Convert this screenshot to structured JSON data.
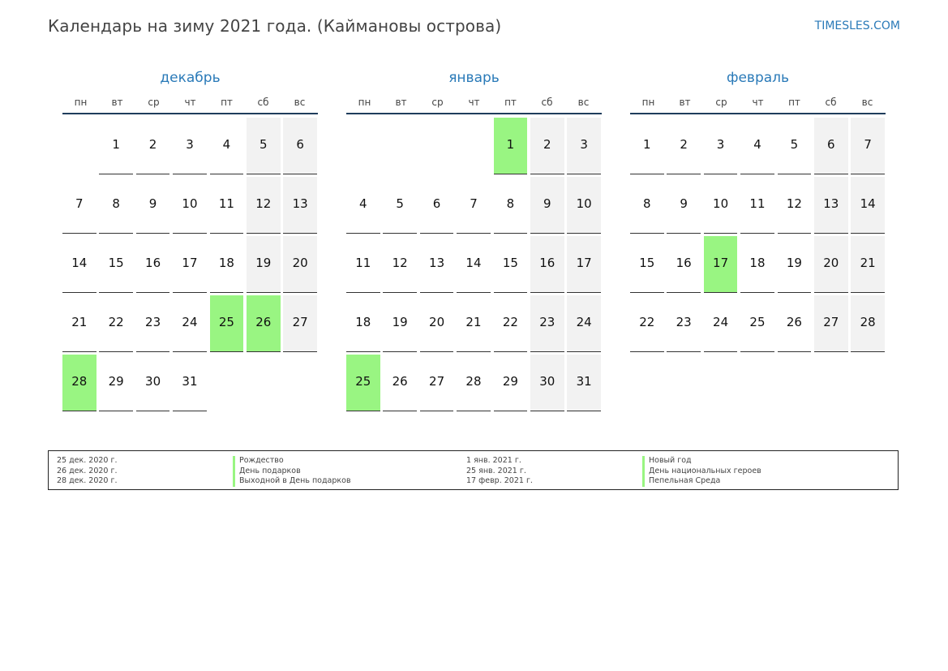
{
  "title": "Календарь на зиму 2021 года. (Каймановы острова)",
  "site": "TIMESLES.COM",
  "weekdays": [
    "пн",
    "вт",
    "ср",
    "чт",
    "пт",
    "сб",
    "вс"
  ],
  "colors": {
    "accent": "#2a7ab8",
    "holiday": "#99f582",
    "weekend": "#f2f2f2"
  },
  "months": [
    {
      "name": "декабрь",
      "days": [
        "",
        "1",
        "2",
        "3",
        "4",
        "5",
        "6",
        "7",
        "8",
        "9",
        "10",
        "11",
        "12",
        "13",
        "14",
        "15",
        "16",
        "17",
        "18",
        "19",
        "20",
        "21",
        "22",
        "23",
        "24",
        "25",
        "26",
        "27",
        "28",
        "29",
        "30",
        "31"
      ],
      "holidays": [
        "25",
        "26",
        "28"
      ]
    },
    {
      "name": "январь",
      "days": [
        "",
        "",
        "",
        "",
        "1",
        "2",
        "3",
        "4",
        "5",
        "6",
        "7",
        "8",
        "9",
        "10",
        "11",
        "12",
        "13",
        "14",
        "15",
        "16",
        "17",
        "18",
        "19",
        "20",
        "21",
        "22",
        "23",
        "24",
        "25",
        "26",
        "27",
        "28",
        "29",
        "30",
        "31"
      ],
      "holidays": [
        "1",
        "25"
      ]
    },
    {
      "name": "февраль",
      "days": [
        "1",
        "2",
        "3",
        "4",
        "5",
        "6",
        "7",
        "8",
        "9",
        "10",
        "11",
        "12",
        "13",
        "14",
        "15",
        "16",
        "17",
        "18",
        "19",
        "20",
        "21",
        "22",
        "23",
        "24",
        "25",
        "26",
        "27",
        "28"
      ],
      "holidays": [
        "17"
      ]
    }
  ],
  "legend": [
    {
      "dates": [
        "25 дек. 2020 г.",
        "26 дек. 2020 г.",
        "28 дек. 2020 г."
      ],
      "names": [
        "Рождество",
        "День подарков",
        "Выходной в День подарков"
      ]
    },
    {
      "dates": [
        "1 янв. 2021 г.",
        "25 янв. 2021 г.",
        "17 февр. 2021 г."
      ],
      "names": [
        "Новый год",
        "День национальных героев",
        "Пепельная Среда"
      ]
    }
  ]
}
